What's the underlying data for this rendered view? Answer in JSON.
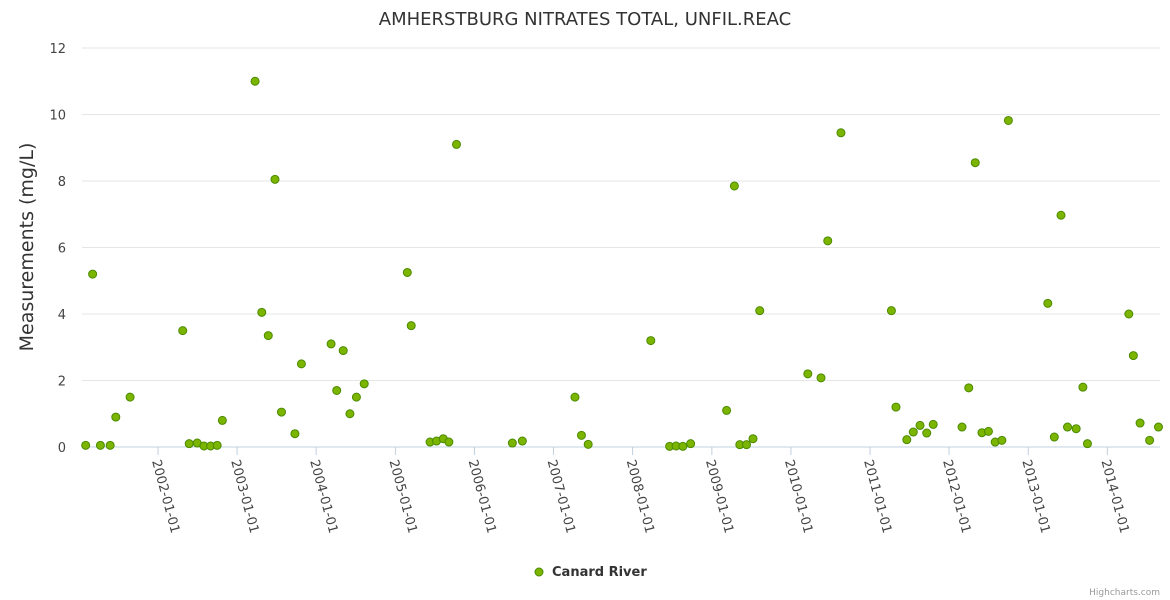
{
  "chart_data": {
    "type": "scatter",
    "title": "AMHERSTBURG NITRATES TOTAL, UNFIL.REAC",
    "xlabel": "",
    "ylabel": "Measurements (mg/L)",
    "xlim": [
      "2001-01-15",
      "2014-09-01"
    ],
    "ylim": [
      0,
      12
    ],
    "yticks": [
      0,
      2,
      4,
      6,
      8,
      10,
      12
    ],
    "xticks": [
      "2002-01-01",
      "2003-01-01",
      "2004-01-01",
      "2005-01-01",
      "2006-01-01",
      "2007-01-01",
      "2008-01-01",
      "2009-01-01",
      "2010-01-01",
      "2011-01-01",
      "2012-01-01",
      "2013-01-01",
      "2014-01-01"
    ],
    "grid": true,
    "legend_position": "bottom-center",
    "credits": "Highcharts.com",
    "color": "#7cb500",
    "series": [
      {
        "name": "Canard River",
        "points": [
          {
            "x": "2001-02-01",
            "y": 0.05
          },
          {
            "x": "2001-03-05",
            "y": 5.2
          },
          {
            "x": "2001-04-10",
            "y": 0.05
          },
          {
            "x": "2001-05-25",
            "y": 0.05
          },
          {
            "x": "2001-06-20",
            "y": 0.9
          },
          {
            "x": "2001-08-25",
            "y": 1.5
          },
          {
            "x": "2002-04-25",
            "y": 3.5
          },
          {
            "x": "2002-05-25",
            "y": 0.1
          },
          {
            "x": "2002-07-01",
            "y": 0.12
          },
          {
            "x": "2002-08-01",
            "y": 0.03
          },
          {
            "x": "2002-09-01",
            "y": 0.03
          },
          {
            "x": "2002-10-01",
            "y": 0.05
          },
          {
            "x": "2002-10-25",
            "y": 0.8
          },
          {
            "x": "2003-03-25",
            "y": 11.0
          },
          {
            "x": "2003-04-25",
            "y": 4.05
          },
          {
            "x": "2003-05-25",
            "y": 3.35
          },
          {
            "x": "2003-06-25",
            "y": 8.05
          },
          {
            "x": "2003-07-25",
            "y": 1.05
          },
          {
            "x": "2003-09-25",
            "y": 0.4
          },
          {
            "x": "2003-10-25",
            "y": 2.5
          },
          {
            "x": "2004-03-10",
            "y": 3.1
          },
          {
            "x": "2004-04-05",
            "y": 1.7
          },
          {
            "x": "2004-05-05",
            "y": 2.9
          },
          {
            "x": "2004-06-05",
            "y": 1.0
          },
          {
            "x": "2004-07-05",
            "y": 1.5
          },
          {
            "x": "2004-08-10",
            "y": 1.9
          },
          {
            "x": "2005-02-25",
            "y": 5.25
          },
          {
            "x": "2005-03-15",
            "y": 3.65
          },
          {
            "x": "2005-06-10",
            "y": 0.15
          },
          {
            "x": "2005-07-10",
            "y": 0.18
          },
          {
            "x": "2005-08-10",
            "y": 0.25
          },
          {
            "x": "2005-09-05",
            "y": 0.15
          },
          {
            "x": "2005-10-10",
            "y": 9.1
          },
          {
            "x": "2006-06-25",
            "y": 0.12
          },
          {
            "x": "2006-08-10",
            "y": 0.18
          },
          {
            "x": "2007-04-10",
            "y": 1.5
          },
          {
            "x": "2007-05-10",
            "y": 0.35
          },
          {
            "x": "2007-06-10",
            "y": 0.08
          },
          {
            "x": "2008-03-25",
            "y": 3.2
          },
          {
            "x": "2008-06-20",
            "y": 0.02
          },
          {
            "x": "2008-07-20",
            "y": 0.03
          },
          {
            "x": "2008-08-20",
            "y": 0.02
          },
          {
            "x": "2008-09-25",
            "y": 0.1
          },
          {
            "x": "2009-03-10",
            "y": 1.1
          },
          {
            "x": "2009-04-15",
            "y": 7.85
          },
          {
            "x": "2009-05-10",
            "y": 0.07
          },
          {
            "x": "2009-06-10",
            "y": 0.07
          },
          {
            "x": "2009-07-10",
            "y": 0.25
          },
          {
            "x": "2009-08-10",
            "y": 4.1
          },
          {
            "x": "2010-03-20",
            "y": 2.2
          },
          {
            "x": "2010-05-20",
            "y": 2.08
          },
          {
            "x": "2010-06-20",
            "y": 6.2
          },
          {
            "x": "2010-08-20",
            "y": 9.45
          },
          {
            "x": "2011-04-10",
            "y": 4.1
          },
          {
            "x": "2011-05-01",
            "y": 1.2
          },
          {
            "x": "2011-06-20",
            "y": 0.22
          },
          {
            "x": "2011-07-20",
            "y": 0.45
          },
          {
            "x": "2011-08-20",
            "y": 0.65
          },
          {
            "x": "2011-09-20",
            "y": 0.42
          },
          {
            "x": "2011-10-20",
            "y": 0.68
          },
          {
            "x": "2012-03-01",
            "y": 0.6
          },
          {
            "x": "2012-04-01",
            "y": 1.78
          },
          {
            "x": "2012-05-01",
            "y": 8.55
          },
          {
            "x": "2012-06-01",
            "y": 0.43
          },
          {
            "x": "2012-07-01",
            "y": 0.47
          },
          {
            "x": "2012-08-01",
            "y": 0.15
          },
          {
            "x": "2012-09-01",
            "y": 0.2
          },
          {
            "x": "2012-10-01",
            "y": 9.82
          },
          {
            "x": "2013-04-01",
            "y": 4.32
          },
          {
            "x": "2013-05-01",
            "y": 0.3
          },
          {
            "x": "2013-06-01",
            "y": 6.97
          },
          {
            "x": "2013-07-01",
            "y": 0.6
          },
          {
            "x": "2013-08-10",
            "y": 0.55
          },
          {
            "x": "2013-09-10",
            "y": 1.8
          },
          {
            "x": "2013-10-01",
            "y": 0.1
          },
          {
            "x": "2014-04-10",
            "y": 4.0
          },
          {
            "x": "2014-05-01",
            "y": 2.75
          },
          {
            "x": "2014-06-01",
            "y": 0.72
          },
          {
            "x": "2014-07-15",
            "y": 0.2
          },
          {
            "x": "2014-08-25",
            "y": 0.6
          }
        ]
      }
    ]
  }
}
